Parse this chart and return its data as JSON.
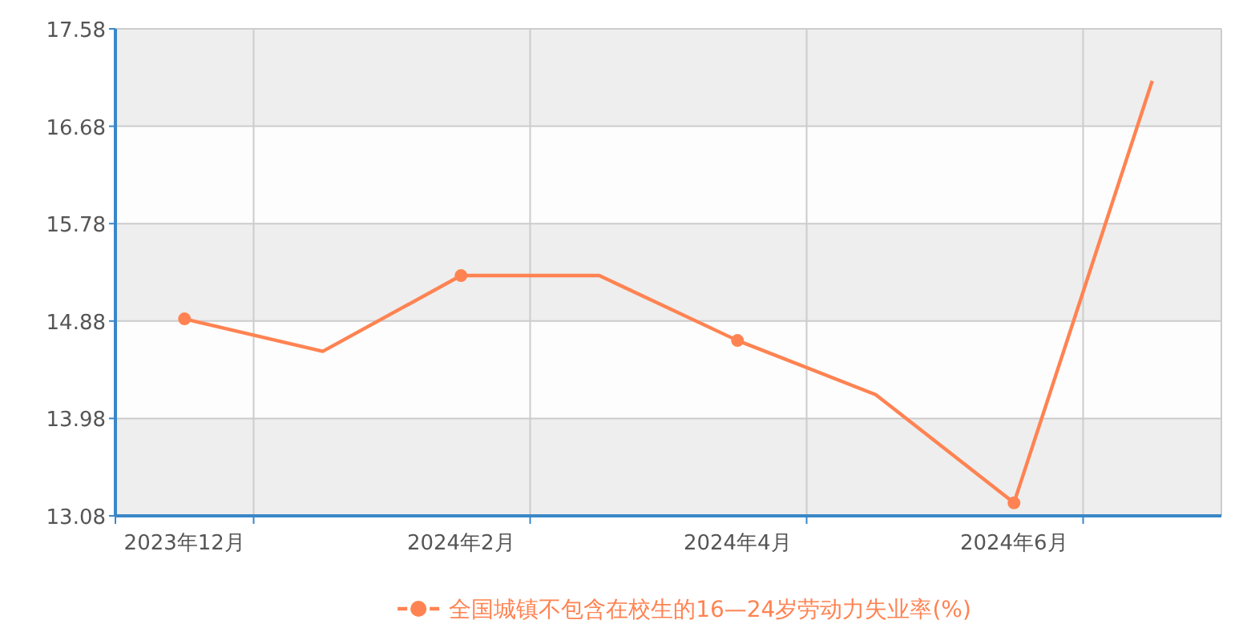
{
  "chart_data": {
    "type": "line",
    "categories": [
      "2023年12月",
      null,
      "2024年2月",
      null,
      "2024年4月",
      null,
      "2024年6月",
      null
    ],
    "series": [
      {
        "name": "全国城镇不包含在校生的16—24岁劳动力失业率(%)",
        "color": "#ff8352",
        "values": [
          14.9,
          14.6,
          15.3,
          15.3,
          14.7,
          14.2,
          13.2,
          17.1
        ]
      }
    ],
    "ylim": [
      13.08,
      17.58
    ],
    "yticks": [
      13.08,
      13.98,
      14.88,
      15.78,
      16.68,
      17.58
    ],
    "grid": true,
    "legend": "bottom",
    "marker": "circle",
    "line_style": "solid"
  }
}
